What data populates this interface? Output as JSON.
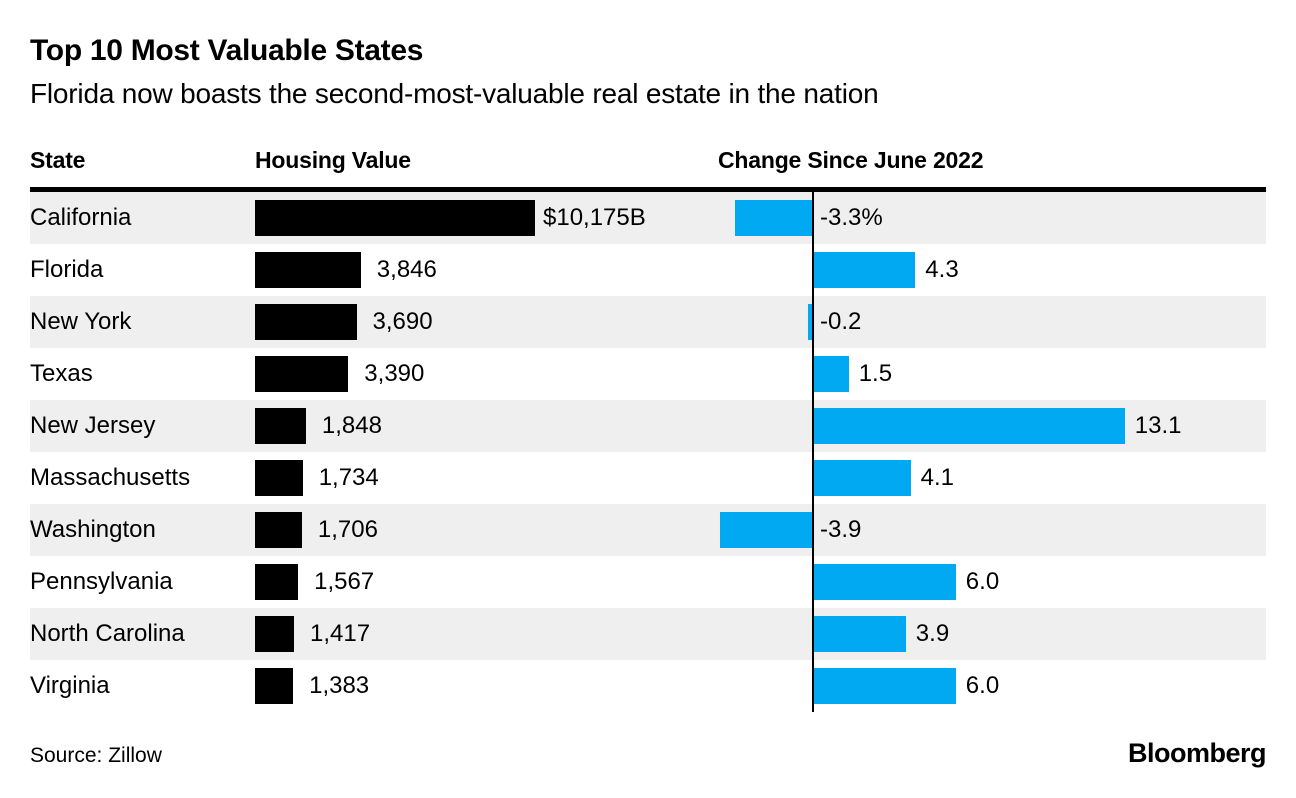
{
  "header": {
    "title": "Top 10 Most Valuable States",
    "subtitle": "Florida now boasts the second-most-valuable real estate in the nation"
  },
  "table": {
    "columns": [
      "State",
      "Housing Value",
      "Change Since June 2022"
    ]
  },
  "chart_data": {
    "type": "bar",
    "title": "Top 10 Most Valuable States",
    "subtitle": "Florida now boasts the second-most-valuable real estate in the nation",
    "categories": [
      "California",
      "Florida",
      "New York",
      "Texas",
      "New Jersey",
      "Massachusetts",
      "Washington",
      "Pennsylvania",
      "North Carolina",
      "Virginia"
    ],
    "series": [
      {
        "name": "Housing Value ($B)",
        "values": [
          10175,
          3846,
          3690,
          3390,
          1848,
          1734,
          1706,
          1567,
          1417,
          1383
        ],
        "labels": [
          "$10,175B",
          "3,846",
          "3,690",
          "3,390",
          "1,848",
          "1,734",
          "1,706",
          "1,567",
          "1,417",
          "1,383"
        ]
      },
      {
        "name": "Change Since June 2022 (%)",
        "values": [
          -3.3,
          4.3,
          -0.2,
          1.5,
          13.1,
          4.1,
          -3.9,
          6.0,
          3.9,
          6.0
        ],
        "labels": [
          "-3.3%",
          "4.3",
          "-0.2",
          "1.5",
          "13.1",
          "4.1",
          "-3.9",
          "6.0",
          "3.9",
          "6.0"
        ]
      }
    ],
    "colors": {
      "housing_bar": "#000000",
      "change_bar": "#00a9f1",
      "row_stripe": "#efefef",
      "text": "#000000"
    },
    "layout": {
      "grid": false,
      "legend": "none",
      "housing_axis_range": [
        0,
        10175
      ],
      "change_axis_baseline": 0,
      "striped_rows": "odd"
    }
  },
  "footer": {
    "source": "Source: Zillow",
    "brand": "Bloomberg"
  }
}
